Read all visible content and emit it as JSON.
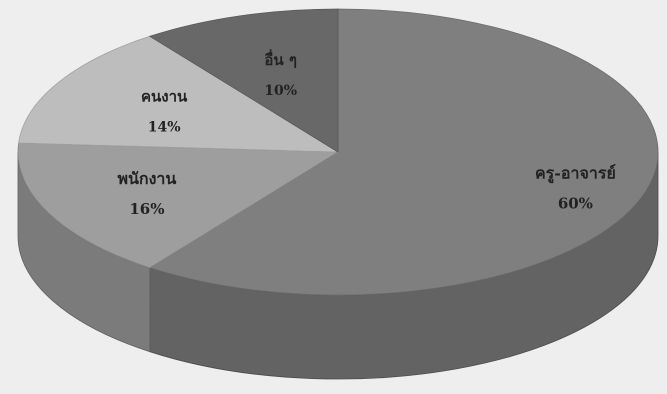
{
  "chart_data": {
    "type": "pie",
    "style": "3d",
    "start": "top-center",
    "direction": "clockwise",
    "slices": [
      {
        "label": "ครู-อาจารย์",
        "value": 60,
        "value_label": "60%",
        "color": "#7f7f7f"
      },
      {
        "label": "พนักงาน",
        "value": 16,
        "value_label": "16%",
        "color": "#9e9e9e"
      },
      {
        "label": "คนงาน",
        "value": 14,
        "value_label": "14%",
        "color": "#bdbdbd"
      },
      {
        "label": "อื่น ๆ",
        "value": 10,
        "value_label": "10%",
        "color": "#686868"
      }
    ]
  }
}
